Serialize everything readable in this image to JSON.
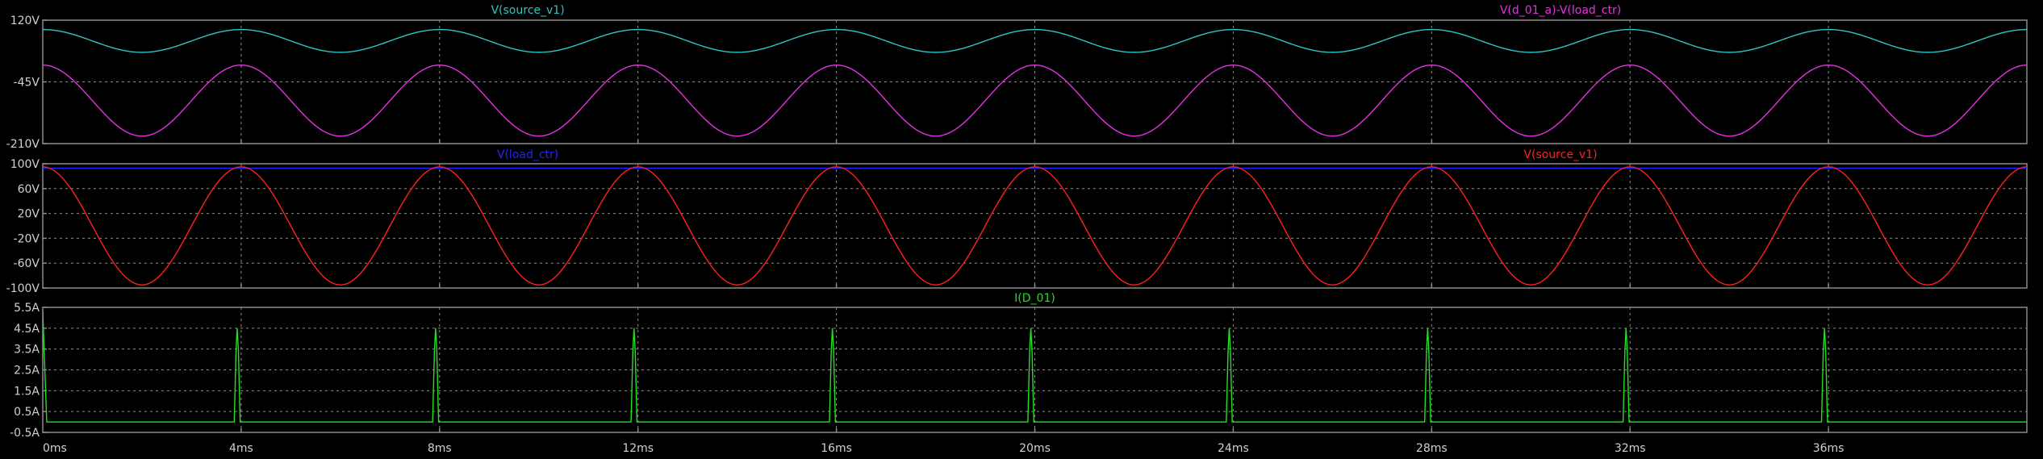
{
  "app": {
    "background": "#000000",
    "frame_color": "#8c8c8c",
    "grid_color": "#8c8c8c",
    "axis_text_color": "#d0d0d0"
  },
  "x_axis": {
    "unit": "ms",
    "range": [
      0,
      40
    ],
    "ticks": [
      0,
      4,
      8,
      12,
      16,
      20,
      24,
      28,
      32,
      36
    ],
    "tick_labels": [
      "0ms",
      "4ms",
      "8ms",
      "12ms",
      "16ms",
      "20ms",
      "24ms",
      "28ms",
      "32ms",
      "36ms"
    ]
  },
  "panes": [
    {
      "id": "pane-1",
      "y_range": [
        -210,
        120
      ],
      "y_ticks": [
        120,
        -45,
        -210
      ],
      "y_tick_labels": [
        "120V",
        "-45V",
        "-210V"
      ],
      "traces": [
        {
          "label": "V(source_v1)",
          "color": "#2ec5c5",
          "label_pos": "left"
        },
        {
          "label": "V(d_01_a)-V(load_ctr)",
          "color": "#e431e4",
          "label_pos": "right"
        }
      ]
    },
    {
      "id": "pane-2",
      "y_range": [
        -100,
        100
      ],
      "y_ticks": [
        100,
        60,
        20,
        -20,
        -60,
        -100
      ],
      "y_tick_labels": [
        "100V",
        "60V",
        "20V",
        "-20V",
        "-60V",
        "-100V"
      ],
      "traces": [
        {
          "label": "V(load_ctr)",
          "color": "#2222ff",
          "label_pos": "left"
        },
        {
          "label": "V(source_v1)",
          "color": "#ff2020",
          "label_pos": "right"
        }
      ]
    },
    {
      "id": "pane-3",
      "y_range": [
        -0.5,
        5.5
      ],
      "y_ticks": [
        5.5,
        4.5,
        3.5,
        2.5,
        1.5,
        0.5,
        -0.5
      ],
      "y_tick_labels": [
        "5.5A",
        "4.5A",
        "3.5A",
        "2.5A",
        "1.5A",
        "0.5A",
        "-0.5A"
      ],
      "traces": [
        {
          "label": "I(D_01)",
          "color": "#22e022",
          "label_pos": "center"
        }
      ]
    }
  ],
  "chart_data": [
    {
      "type": "line",
      "title": "",
      "xlabel": "",
      "ylabel": "",
      "x_unit": "ms",
      "xlim": [
        0,
        40
      ],
      "ylim": [
        -210,
        120
      ],
      "grid": true,
      "series": [
        {
          "name": "V(source_v1)",
          "color": "#2ec5c5",
          "x": [
            0,
            1,
            2,
            3,
            4,
            5,
            6,
            7,
            8,
            9,
            10,
            11,
            12,
            13,
            14,
            15,
            16,
            17,
            18,
            19,
            20,
            21,
            22,
            23,
            24,
            25,
            26,
            27,
            28,
            29,
            30,
            31,
            32,
            33,
            34,
            35,
            36,
            37,
            38,
            39,
            40
          ],
          "y": [
            95,
            65,
            34,
            65,
            95,
            65,
            34,
            65,
            95,
            65,
            34,
            65,
            95,
            65,
            34,
            65,
            95,
            65,
            34,
            65,
            95,
            65,
            34,
            65,
            95,
            65,
            34,
            65,
            95,
            65,
            34,
            65,
            95,
            65,
            34,
            65,
            95,
            65,
            34,
            65,
            95
          ]
        },
        {
          "name": "V(d_01_a)-V(load_ctr)",
          "color": "#e431e4",
          "x": [
            0,
            1,
            2,
            3,
            4,
            5,
            6,
            7,
            8,
            9,
            10,
            11,
            12,
            13,
            14,
            15,
            16,
            17,
            18,
            19,
            20,
            21,
            22,
            23,
            24,
            25,
            26,
            27,
            28,
            29,
            30,
            31,
            32,
            33,
            34,
            35,
            36,
            37,
            38,
            39,
            40
          ],
          "y": [
            0,
            -95,
            -190,
            -95,
            0,
            -95,
            -190,
            -95,
            0,
            -95,
            -190,
            -95,
            0,
            -95,
            -190,
            -95,
            0,
            -95,
            -190,
            -95,
            0,
            -95,
            -190,
            -95,
            0,
            -95,
            -190,
            -95,
            0,
            -95,
            -190,
            -95,
            0,
            -95,
            -190,
            -95,
            0,
            -95,
            -190,
            -95,
            0
          ]
        }
      ]
    },
    {
      "type": "line",
      "title": "",
      "xlabel": "",
      "ylabel": "",
      "x_unit": "ms",
      "xlim": [
        0,
        40
      ],
      "ylim": [
        -100,
        100
      ],
      "grid": true,
      "series": [
        {
          "name": "V(load_ctr)",
          "color": "#2222ff",
          "x": [
            0,
            4,
            8,
            12,
            16,
            20,
            24,
            28,
            32,
            36,
            40
          ],
          "y": [
            93,
            93,
            93,
            93,
            93,
            93,
            93,
            93,
            93,
            93,
            93
          ]
        },
        {
          "name": "V(source_v1)",
          "color": "#ff2020",
          "x": [
            0,
            1,
            2,
            3,
            4,
            5,
            6,
            7,
            8,
            9,
            10,
            11,
            12,
            13,
            14,
            15,
            16,
            17,
            18,
            19,
            20,
            21,
            22,
            23,
            24,
            25,
            26,
            27,
            28,
            29,
            30,
            31,
            32,
            33,
            34,
            35,
            36,
            37,
            38,
            39,
            40
          ],
          "y": [
            95,
            0,
            -95,
            0,
            95,
            0,
            -95,
            0,
            95,
            0,
            -95,
            0,
            95,
            0,
            -95,
            0,
            95,
            0,
            -95,
            0,
            95,
            0,
            -95,
            0,
            95,
            0,
            -95,
            0,
            95,
            0,
            -95,
            0,
            95,
            0,
            -95,
            0,
            95,
            0,
            -95,
            0,
            95
          ]
        }
      ]
    },
    {
      "type": "line",
      "title": "",
      "xlabel": "",
      "ylabel": "",
      "x_unit": "ms",
      "xlim": [
        0,
        40
      ],
      "ylim": [
        -0.5,
        5.5
      ],
      "grid": true,
      "series": [
        {
          "name": "I(D_01)",
          "color": "#22e022",
          "x": [
            0,
            0.1,
            3.8,
            3.9,
            4.0,
            4.1,
            7.8,
            7.9,
            8.0,
            8.1,
            11.8,
            11.9,
            12.0,
            12.1,
            15.8,
            15.9,
            16.0,
            16.1,
            19.8,
            19.9,
            20.0,
            20.1,
            23.8,
            23.9,
            24.0,
            24.1,
            27.8,
            27.9,
            28.0,
            28.1,
            31.8,
            31.9,
            32.0,
            32.1,
            35.8,
            35.9,
            36.0,
            36.1,
            40
          ],
          "y": [
            5.3,
            0,
            0,
            4.5,
            0,
            0,
            0,
            4.5,
            0,
            0,
            0,
            4.5,
            0,
            0,
            0,
            4.5,
            0,
            0,
            0,
            4.5,
            0,
            0,
            0,
            4.5,
            0,
            0,
            0,
            4.5,
            0,
            0,
            0,
            4.5,
            0,
            0,
            0,
            4.5,
            0,
            0,
            0
          ]
        }
      ]
    }
  ]
}
